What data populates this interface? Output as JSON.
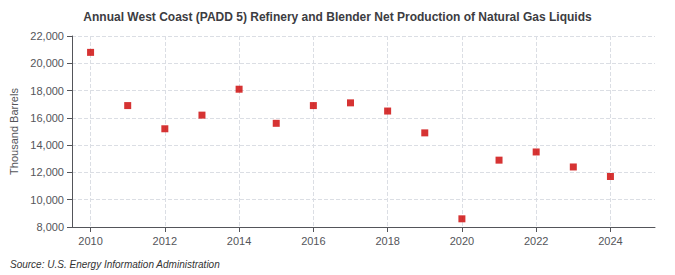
{
  "chart_data": {
    "type": "scatter",
    "title": "Annual West Coast (PADD 5) Refinery and Blender Net Production of Natural Gas Liquids",
    "ylabel": "Thousand Barrels",
    "annotation": "Source: U.S. Energy Information Administration",
    "x": [
      2010,
      2011,
      2012,
      2013,
      2014,
      2015,
      2016,
      2017,
      2018,
      2019,
      2020,
      2021,
      2022,
      2023,
      2024
    ],
    "values": [
      20800,
      16900,
      15200,
      16200,
      18100,
      15600,
      16900,
      17100,
      16500,
      14900,
      8600,
      12900,
      13500,
      12400,
      11700
    ],
    "color": "#cc0000",
    "marker": "square",
    "xlim": [
      2009.5,
      2025.2
    ],
    "xticks": [
      2010,
      2012,
      2014,
      2016,
      2018,
      2020,
      2022,
      2024
    ],
    "ylim": [
      8000,
      22000
    ],
    "yticks": [
      {
        "value": 8000,
        "label": "8,000"
      },
      {
        "value": 10000,
        "label": "10,000"
      },
      {
        "value": 12000,
        "label": "12,000"
      },
      {
        "value": 14000,
        "label": "14,000"
      },
      {
        "value": 16000,
        "label": "16,000"
      },
      {
        "value": 18000,
        "label": "18,000"
      },
      {
        "value": 20000,
        "label": "20,000"
      },
      {
        "value": 22000,
        "label": "22,000"
      }
    ],
    "grid": true
  }
}
